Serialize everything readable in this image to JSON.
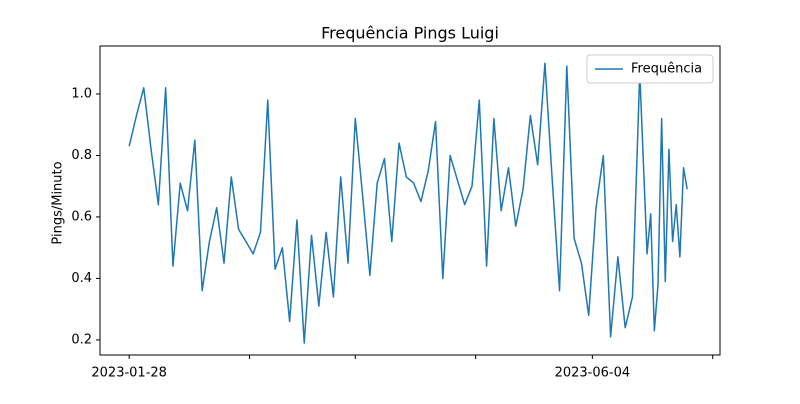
{
  "chart_data": {
    "type": "line",
    "title": "Frequência Pings Luigi",
    "y_label": "Pings/Minuto",
    "x": [
      "2023-01-28",
      "2023-01-30",
      "2023-02-01",
      "2023-02-03",
      "2023-02-05",
      "2023-02-07",
      "2023-02-09",
      "2023-02-11",
      "2023-02-13",
      "2023-02-15",
      "2023-02-17",
      "2023-02-19",
      "2023-02-21",
      "2023-02-23",
      "2023-02-25",
      "2023-02-27",
      "2023-03-01",
      "2023-03-03",
      "2023-03-05",
      "2023-03-07",
      "2023-03-09",
      "2023-03-11",
      "2023-03-13",
      "2023-03-15",
      "2023-03-17",
      "2023-03-19",
      "2023-03-21",
      "2023-03-23",
      "2023-03-25",
      "2023-03-27",
      "2023-03-29",
      "2023-03-31",
      "2023-04-02",
      "2023-04-04",
      "2023-04-06",
      "2023-04-08",
      "2023-04-10",
      "2023-04-12",
      "2023-04-14",
      "2023-04-16",
      "2023-04-18",
      "2023-04-20",
      "2023-04-22",
      "2023-04-24",
      "2023-04-26",
      "2023-04-28",
      "2023-04-30",
      "2023-05-02",
      "2023-05-04",
      "2023-05-06",
      "2023-05-08",
      "2023-05-10",
      "2023-05-12",
      "2023-05-14",
      "2023-05-16",
      "2023-05-18",
      "2023-05-20",
      "2023-05-22",
      "2023-05-24",
      "2023-05-26",
      "2023-05-28",
      "2023-05-30",
      "2023-06-01",
      "2023-06-03",
      "2023-06-05",
      "2023-06-07",
      "2023-06-09",
      "2023-06-11",
      "2023-06-13",
      "2023-06-15",
      "2023-06-17",
      "2023-06-19",
      "2023-06-20",
      "2023-06-21",
      "2023-06-22",
      "2023-06-23",
      "2023-06-24",
      "2023-06-25",
      "2023-06-26",
      "2023-06-27",
      "2023-06-28",
      "2023-06-29",
      "2023-06-30"
    ],
    "series": [
      {
        "name": "Frequência",
        "color": "#1f77b4",
        "values": [
          0.83,
          0.93,
          1.02,
          0.82,
          0.64,
          1.02,
          0.44,
          0.71,
          0.62,
          0.85,
          0.36,
          0.52,
          0.63,
          0.45,
          0.73,
          0.56,
          0.52,
          0.48,
          0.55,
          0.98,
          0.43,
          0.5,
          0.26,
          0.59,
          0.19,
          0.54,
          0.31,
          0.55,
          0.34,
          0.73,
          0.45,
          0.92,
          0.67,
          0.41,
          0.71,
          0.79,
          0.52,
          0.84,
          0.73,
          0.71,
          0.65,
          0.75,
          0.91,
          0.4,
          0.8,
          0.72,
          0.64,
          0.7,
          0.98,
          0.44,
          0.92,
          0.62,
          0.76,
          0.57,
          0.69,
          0.93,
          0.77,
          1.1,
          0.72,
          0.36,
          1.09,
          0.53,
          0.45,
          0.28,
          0.63,
          0.8,
          0.21,
          0.47,
          0.24,
          0.34,
          1.07,
          0.48,
          0.61,
          0.23,
          0.38,
          0.92,
          0.39,
          0.82,
          0.52,
          0.64,
          0.47,
          0.76,
          0.69
        ]
      }
    ],
    "xlim": [
      "2023-01-20",
      "2023-07-09"
    ],
    "xticks": [
      "2023-01-28",
      {
        "value": "2023-03-02",
        "label": null
      },
      {
        "value": "2023-03-31",
        "label": null
      },
      {
        "value": "2023-05-03",
        "label": null
      },
      "2023-06-04",
      {
        "value": "2023-07-07",
        "label": null
      }
    ],
    "ylim": [
      0.151,
      1.156
    ],
    "yticks": [
      0.2,
      0.4,
      0.6,
      0.8,
      {
        "value": 1,
        "label": "1.0"
      }
    ],
    "legend": "upper right"
  }
}
